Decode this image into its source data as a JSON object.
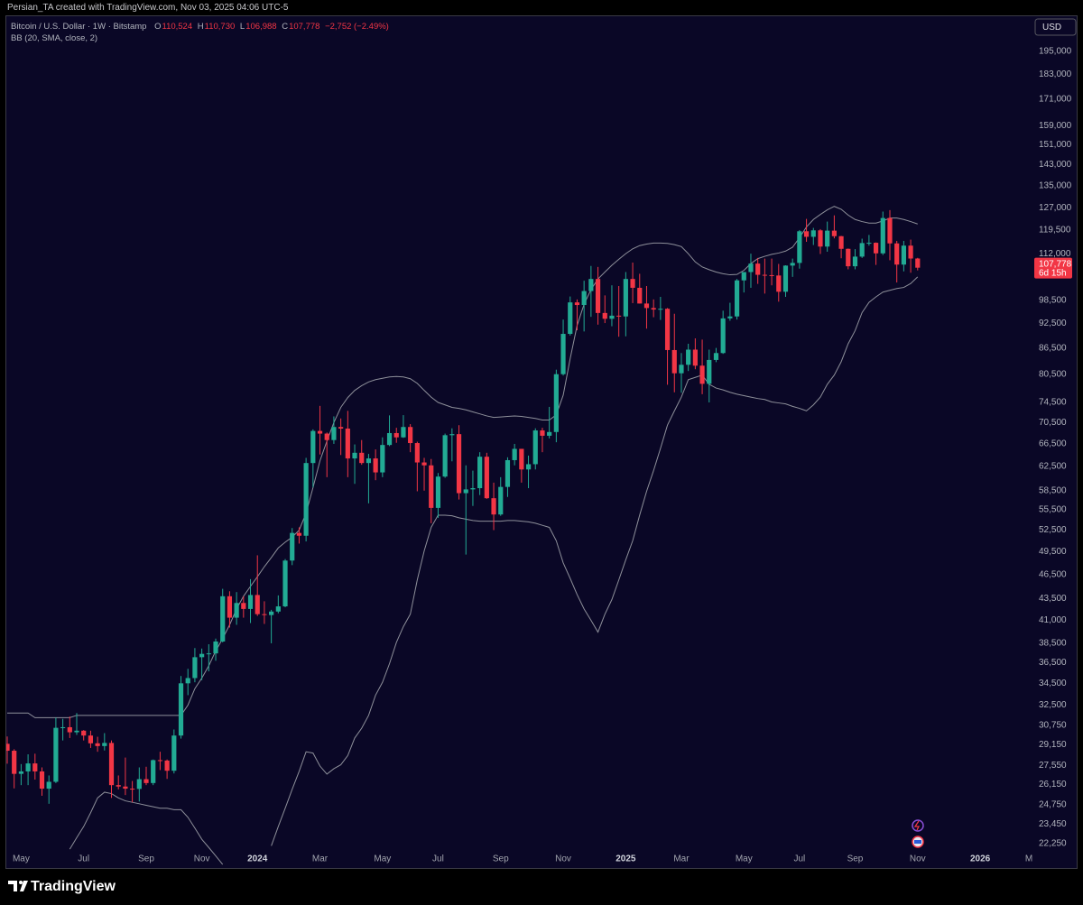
{
  "header": "Persian_TA created with TradingView.com, Nov 03, 2025 04:06 UTC-5",
  "currency": "USD",
  "brand": "TradingView",
  "chart_data": {
    "type": "candlestick",
    "legend": {
      "symbol": "Bitcoin / U.S. Dollar · 1W · Bitstamp",
      "o": "O",
      "open": "110,524",
      "h": "H",
      "high": "110,730",
      "l": "L",
      "low": "106,988",
      "c": "C",
      "close": "107,778",
      "change": "−2,752 (−2.49%)"
    },
    "indicator": "BB (20, SMA, close, 2)",
    "last_price": {
      "value": 107778,
      "label": "107,778"
    },
    "countdown": "6d 15h",
    "log_scale": true,
    "grid": false,
    "up_color": "#22ab94",
    "down_color": "#f23645",
    "ylim": [
      20900,
      214700
    ],
    "yticks": [
      {
        "value": 195000,
        "label": "195,000"
      },
      {
        "value": 183000,
        "label": "183,000"
      },
      {
        "value": 171000,
        "label": "171,000"
      },
      {
        "value": 159000,
        "label": "159,000"
      },
      {
        "value": 151000,
        "label": "151,000"
      },
      {
        "value": 143000,
        "label": "143,000"
      },
      {
        "value": 135000,
        "label": "135,000"
      },
      {
        "value": 127000,
        "label": "127,000"
      },
      {
        "value": 119500,
        "label": "119,500"
      },
      {
        "value": 112000,
        "label": "112,000"
      },
      {
        "value": 98500,
        "label": "98,500"
      },
      {
        "value": 92500,
        "label": "92,500"
      },
      {
        "value": 86500,
        "label": "86,500"
      },
      {
        "value": 80500,
        "label": "80,500"
      },
      {
        "value": 74500,
        "label": "74,500"
      },
      {
        "value": 70500,
        "label": "70,500"
      },
      {
        "value": 66500,
        "label": "66,500"
      },
      {
        "value": 62500,
        "label": "62,500"
      },
      {
        "value": 58500,
        "label": "58,500"
      },
      {
        "value": 55500,
        "label": "55,500"
      },
      {
        "value": 52500,
        "label": "52,500"
      },
      {
        "value": 49500,
        "label": "49,500"
      },
      {
        "value": 46500,
        "label": "46,500"
      },
      {
        "value": 43500,
        "label": "43,500"
      },
      {
        "value": 41000,
        "label": "41,000"
      },
      {
        "value": 38500,
        "label": "38,500"
      },
      {
        "value": 36500,
        "label": "36,500"
      },
      {
        "value": 34500,
        "label": "34,500"
      },
      {
        "value": 32500,
        "label": "32,500"
      },
      {
        "value": 30750,
        "label": "30,750"
      },
      {
        "value": 29150,
        "label": "29,150"
      },
      {
        "value": 27550,
        "label": "27,550"
      },
      {
        "value": 26150,
        "label": "26,150"
      },
      {
        "value": 24750,
        "label": "24,750"
      },
      {
        "value": 23450,
        "label": "23,450"
      },
      {
        "value": 22250,
        "label": "22,250"
      }
    ],
    "categories": [
      null,
      null,
      "May",
      null,
      null,
      null,
      null,
      null,
      null,
      null,
      null,
      "Jul",
      null,
      null,
      null,
      null,
      null,
      null,
      null,
      null,
      "Sep",
      null,
      null,
      null,
      null,
      null,
      null,
      null,
      "Nov",
      null,
      null,
      null,
      null,
      null,
      null,
      null,
      "2024",
      null,
      null,
      null,
      null,
      null,
      null,
      null,
      null,
      "Mar",
      null,
      null,
      null,
      null,
      null,
      null,
      null,
      null,
      "May",
      null,
      null,
      null,
      null,
      null,
      null,
      null,
      "Jul",
      null,
      null,
      null,
      null,
      null,
      null,
      null,
      null,
      "Sep",
      null,
      null,
      null,
      null,
      null,
      null,
      null,
      null,
      "Nov",
      null,
      null,
      null,
      null,
      null,
      null,
      null,
      null,
      "2025",
      null,
      null,
      null,
      null,
      null,
      null,
      null,
      "Mar",
      null,
      null,
      null,
      null,
      null,
      null,
      null,
      null,
      "May",
      null,
      null,
      null,
      null,
      null,
      null,
      null,
      "Jul",
      null,
      null,
      null,
      null,
      null,
      null,
      null,
      "Sep",
      null,
      null,
      null,
      null,
      null,
      null,
      null,
      null,
      "Nov",
      null,
      null,
      null,
      null,
      null,
      null,
      null,
      null,
      "2026",
      null,
      null,
      null,
      null,
      null,
      null,
      "M"
    ],
    "open": [
      29230,
      28680,
      26920,
      27100,
      27700,
      27100,
      25850,
      26340,
      30540,
      30590,
      30170,
      30300,
      29900,
      29270,
      29050,
      29300,
      26100,
      26000,
      25850,
      25830,
      26530,
      26250,
      27950,
      27920,
      27150,
      29900,
      34500,
      35000,
      37060,
      37400,
      37450,
      38690,
      43800,
      41300,
      43000,
      42300,
      43950,
      41700,
      41600,
      42000,
      42600,
      48300,
      52100,
      51700,
      63100,
      68900,
      68400,
      67200,
      69650,
      69350,
      63900,
      64900,
      63100,
      63900,
      61500,
      66300,
      68500,
      67700,
      69650,
      66650,
      63200,
      62700,
      55800,
      60800,
      68100,
      68300,
      58100,
      58700,
      58900,
      64200,
      57300,
      54800,
      59100,
      63600,
      65600,
      62000,
      62900,
      69000,
      68000,
      68700,
      80500,
      89900,
      98000,
      97300,
      101100,
      104500,
      95200,
      93700,
      94500,
      94300,
      104500,
      102000,
      97700,
      96500,
      96100,
      96300,
      86000,
      80700,
      82600,
      86100,
      82400,
      78400,
      83700,
      85300,
      93800,
      94300,
      104100,
      106500,
      109000,
      105700,
      105600,
      105500,
      100900,
      108400,
      109200,
      119100,
      117300,
      119400,
      114200,
      119300,
      117500,
      113500,
      108200,
      111100,
      115300,
      115400,
      112100,
      123500,
      115200,
      108700,
      114500,
      110524,
      null,
      null,
      null,
      null,
      null,
      null,
      null,
      null,
      null,
      null,
      null,
      null,
      null,
      null,
      null,
      null
    ],
    "high": [
      29820,
      28800,
      27650,
      28400,
      28450,
      27400,
      26800,
      31400,
      31300,
      31500,
      31800,
      30350,
      30300,
      29800,
      30100,
      29500,
      26800,
      28150,
      26400,
      27400,
      27450,
      28000,
      28600,
      28000,
      30400,
      35200,
      35900,
      38000,
      37950,
      38400,
      39000,
      44700,
      44400,
      44300,
      43800,
      45900,
      49000,
      43200,
      42200,
      43900,
      48500,
      52800,
      52900,
      64000,
      69200,
      73800,
      68600,
      71700,
      71300,
      72800,
      66400,
      67200,
      64700,
      65500,
      67700,
      71900,
      69500,
      71950,
      70200,
      66900,
      64000,
      63800,
      61400,
      68400,
      69400,
      70000,
      62700,
      61800,
      65000,
      64900,
      59800,
      60700,
      64100,
      66500,
      65600,
      64400,
      69400,
      69500,
      73600,
      81500,
      93500,
      99600,
      98800,
      104000,
      108300,
      108000,
      99900,
      102700,
      102500,
      106500,
      109300,
      106000,
      102500,
      98800,
      99500,
      96500,
      95000,
      85300,
      87500,
      88800,
      88500,
      86100,
      86500,
      95800,
      97900,
      104500,
      105800,
      112000,
      110700,
      110500,
      110500,
      108900,
      108500,
      110500,
      119500,
      123200,
      120200,
      119800,
      122300,
      124400,
      117600,
      113600,
      113400,
      116700,
      117900,
      115500,
      125700,
      126200,
      116000,
      116000,
      116400,
      110730,
      null,
      null,
      null,
      null,
      null,
      null,
      null,
      null,
      null,
      null,
      null,
      null,
      null,
      null,
      null,
      null
    ],
    "low": [
      27680,
      25870,
      26100,
      26100,
      26500,
      25350,
      24800,
      26250,
      29500,
      29700,
      29950,
      29500,
      28900,
      28600,
      28700,
      25200,
      25800,
      25400,
      24900,
      24950,
      26100,
      26100,
      27200,
      26550,
      26950,
      29650,
      33400,
      34600,
      34800,
      35650,
      36700,
      38600,
      40200,
      40500,
      41300,
      40700,
      41500,
      40600,
      38500,
      41800,
      42500,
      47700,
      50600,
      50900,
      59000,
      64600,
      60700,
      66500,
      64500,
      60700,
      59600,
      62800,
      56500,
      60200,
      60700,
      66100,
      66700,
      67600,
      65000,
      58400,
      58500,
      53500,
      54300,
      60600,
      63400,
      57100,
      49100,
      56100,
      57800,
      57200,
      52500,
      54600,
      57500,
      62700,
      59800,
      58900,
      62000,
      65000,
      67500,
      66800,
      80200,
      89500,
      90800,
      90500,
      94200,
      92200,
      92600,
      91800,
      89200,
      89300,
      97800,
      97700,
      91200,
      94100,
      93400,
      78200,
      76600,
      76500,
      81200,
      81600,
      76200,
      74500,
      83200,
      85100,
      93200,
      93500,
      100700,
      102000,
      103100,
      100400,
      102700,
      98200,
      99500,
      105100,
      107500,
      115700,
      114700,
      111900,
      112600,
      116800,
      110600,
      107300,
      107300,
      110700,
      114500,
      108600,
      111600,
      110000,
      103500,
      106700,
      106300,
      106988,
      null,
      null,
      null,
      null,
      null,
      null,
      null,
      null,
      null,
      null,
      null,
      null,
      null,
      null,
      null,
      null
    ],
    "close": [
      28680,
      26920,
      27100,
      27700,
      27100,
      25850,
      26340,
      30540,
      30590,
      30170,
      30300,
      29900,
      29270,
      29050,
      29300,
      26100,
      26000,
      25850,
      25830,
      26530,
      26250,
      27950,
      27920,
      27150,
      29900,
      34500,
      35000,
      37060,
      37400,
      37450,
      38690,
      43800,
      41300,
      43000,
      42300,
      43950,
      41700,
      41600,
      42000,
      42600,
      48300,
      52100,
      51700,
      63100,
      68900,
      68400,
      67200,
      69650,
      69350,
      63900,
      64900,
      63100,
      63900,
      61500,
      66300,
      68500,
      67700,
      69650,
      66650,
      63200,
      62700,
      55800,
      60800,
      68100,
      68300,
      58100,
      58700,
      58900,
      64200,
      57300,
      54800,
      59100,
      63600,
      65600,
      62000,
      62900,
      69000,
      68000,
      68700,
      80500,
      89900,
      98000,
      97300,
      101100,
      104500,
      95200,
      93700,
      94500,
      94300,
      104500,
      102000,
      97700,
      96500,
      96100,
      96300,
      86000,
      80700,
      82600,
      86100,
      82400,
      78400,
      83700,
      85300,
      93800,
      94300,
      104100,
      106500,
      109000,
      105700,
      105600,
      105500,
      100900,
      108400,
      109200,
      119100,
      117300,
      119400,
      114200,
      119300,
      117500,
      113500,
      108200,
      111100,
      115300,
      115400,
      112100,
      123500,
      115200,
      108700,
      114500,
      110524,
      107778,
      null,
      null,
      null,
      null,
      null,
      null,
      null,
      null,
      null,
      null,
      null,
      null,
      null,
      null,
      null,
      null
    ],
    "overlays": [
      {
        "color": "#8e909a",
        "values": [
          31800,
          31800,
          31800,
          31800,
          31400,
          31400,
          31400,
          31400,
          31400,
          31400,
          31600,
          31600,
          31600,
          31600,
          31600,
          31600,
          31600,
          31600,
          31600,
          31600,
          31600,
          31600,
          31600,
          31600,
          31600,
          31600,
          32500,
          34000,
          35000,
          36200,
          37700,
          39000,
          40500,
          42300,
          43800,
          45000,
          46200,
          47500,
          48700,
          50000,
          50800,
          51500,
          52500,
          55000,
          59000,
          63500,
          67000,
          70500,
          73500,
          75500,
          77000,
          78000,
          78800,
          79300,
          79600,
          79900,
          80000,
          79900,
          79500,
          78500,
          77000,
          75600,
          74500,
          74000,
          73500,
          73300,
          73000,
          72600,
          72200,
          71800,
          71500,
          71600,
          71700,
          71800,
          71700,
          71500,
          71300,
          71000,
          71000,
          72000,
          76000,
          84000,
          92000,
          97500,
          101500,
          104500,
          106500,
          108500,
          110300,
          112000,
          113500,
          114500,
          115000,
          115300,
          115300,
          115200,
          114800,
          114200,
          112000,
          109500,
          108000,
          107200,
          106500,
          106000,
          105700,
          105800,
          107000,
          109000,
          110500,
          111200,
          111800,
          112200,
          112800,
          114000,
          117000,
          120500,
          123000,
          124700,
          126300,
          127500,
          126500,
          124500,
          123000,
          122300,
          121800,
          121800,
          122500,
          123500,
          123500,
          123000,
          122300,
          121500,
          null,
          null,
          null,
          null,
          null,
          null,
          null,
          null,
          null,
          null,
          null,
          null,
          null,
          null,
          null,
          null
        ]
      },
      {
        "color": "#8e909a",
        "values": [
          null,
          null,
          null,
          null,
          null,
          null,
          null,
          null,
          null,
          21900,
          22600,
          23300,
          24200,
          25200,
          25600,
          25500,
          25200,
          25000,
          24900,
          24800,
          24700,
          24600,
          24500,
          24500,
          24400,
          24400,
          23900,
          23200,
          22500,
          22000,
          21500,
          21000,
          null,
          null,
          null,
          null,
          null,
          null,
          22100,
          23300,
          24500,
          25800,
          27100,
          28600,
          28500,
          27500,
          26900,
          27300,
          27600,
          28300,
          29700,
          30500,
          31600,
          33400,
          34600,
          36400,
          38600,
          40300,
          41700,
          45800,
          49600,
          52900,
          54700,
          54700,
          54600,
          54300,
          54100,
          53900,
          53800,
          53800,
          53800,
          53800,
          53900,
          53900,
          53800,
          53700,
          53500,
          53200,
          52900,
          51000,
          48000,
          46000,
          44000,
          42300,
          41000,
          39700,
          41700,
          43400,
          45800,
          48400,
          51000,
          54700,
          58400,
          61800,
          65700,
          70000,
          72800,
          75600,
          79300,
          79800,
          80300,
          78300,
          77500,
          77100,
          76600,
          76200,
          75900,
          75600,
          75300,
          75100,
          74600,
          74400,
          74200,
          73700,
          73300,
          72800,
          74000,
          75600,
          78300,
          80300,
          83300,
          87500,
          90700,
          95300,
          98000,
          99500,
          100800,
          101300,
          101800,
          102100,
          103200,
          105100,
          null,
          null,
          null,
          null,
          null,
          null,
          null,
          null,
          null,
          null,
          null,
          null,
          null,
          null,
          null,
          null
        ]
      }
    ]
  }
}
